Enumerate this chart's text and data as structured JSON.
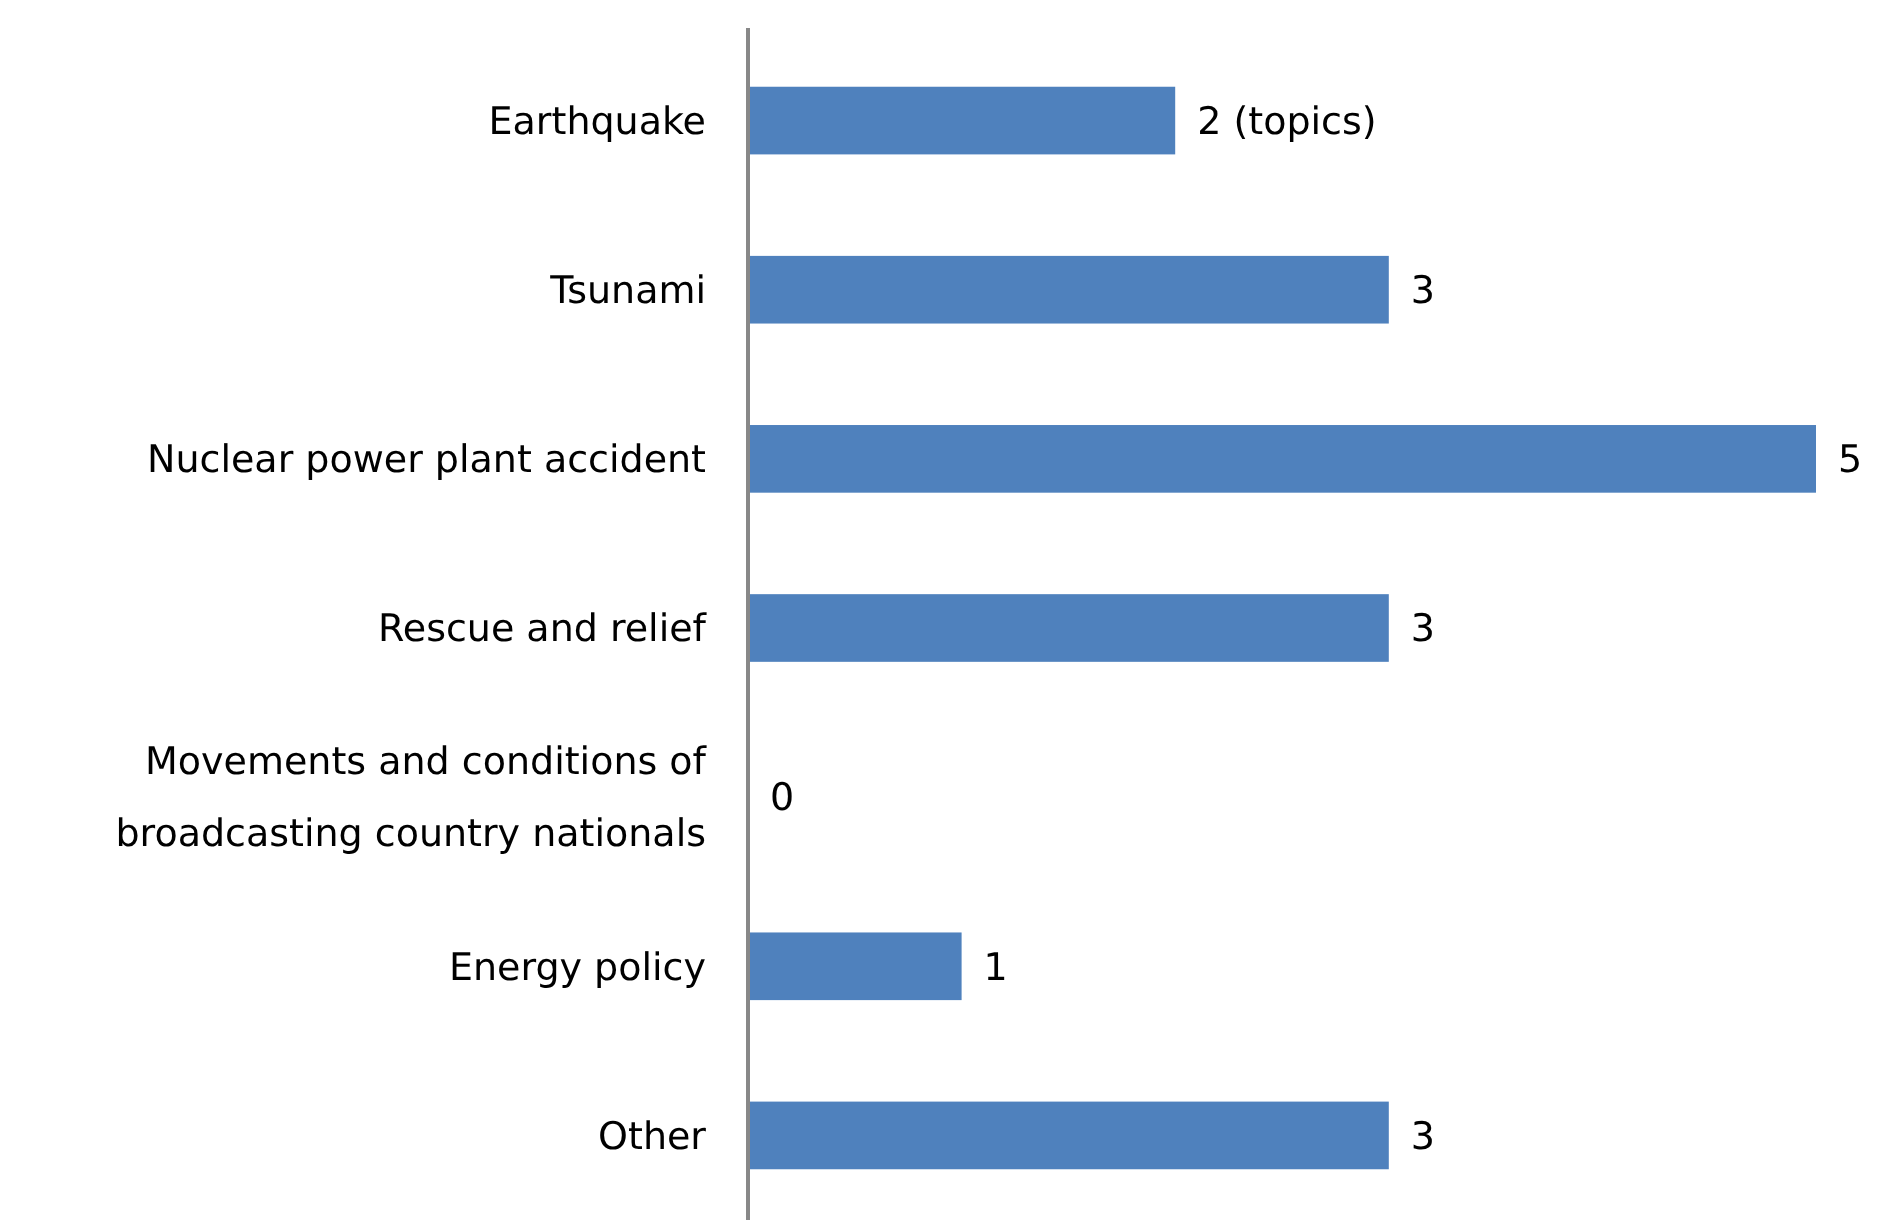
{
  "chart_data": {
    "type": "bar",
    "orientation": "horizontal",
    "categories": [
      "Earthquake",
      "Tsunami",
      "Nuclear power plant accident",
      "Rescue and relief",
      "Movements and conditions of\nbroadcasting country nationals",
      "Energy policy",
      "Other"
    ],
    "values": [
      2,
      3,
      5,
      3,
      0,
      1,
      3
    ],
    "value_labels": [
      "2 (topics)",
      "3",
      "5",
      "3",
      "0",
      "1",
      "3"
    ],
    "color": "#4f81bd",
    "xlim": [
      0,
      5
    ],
    "tick_labels": "y"
  }
}
